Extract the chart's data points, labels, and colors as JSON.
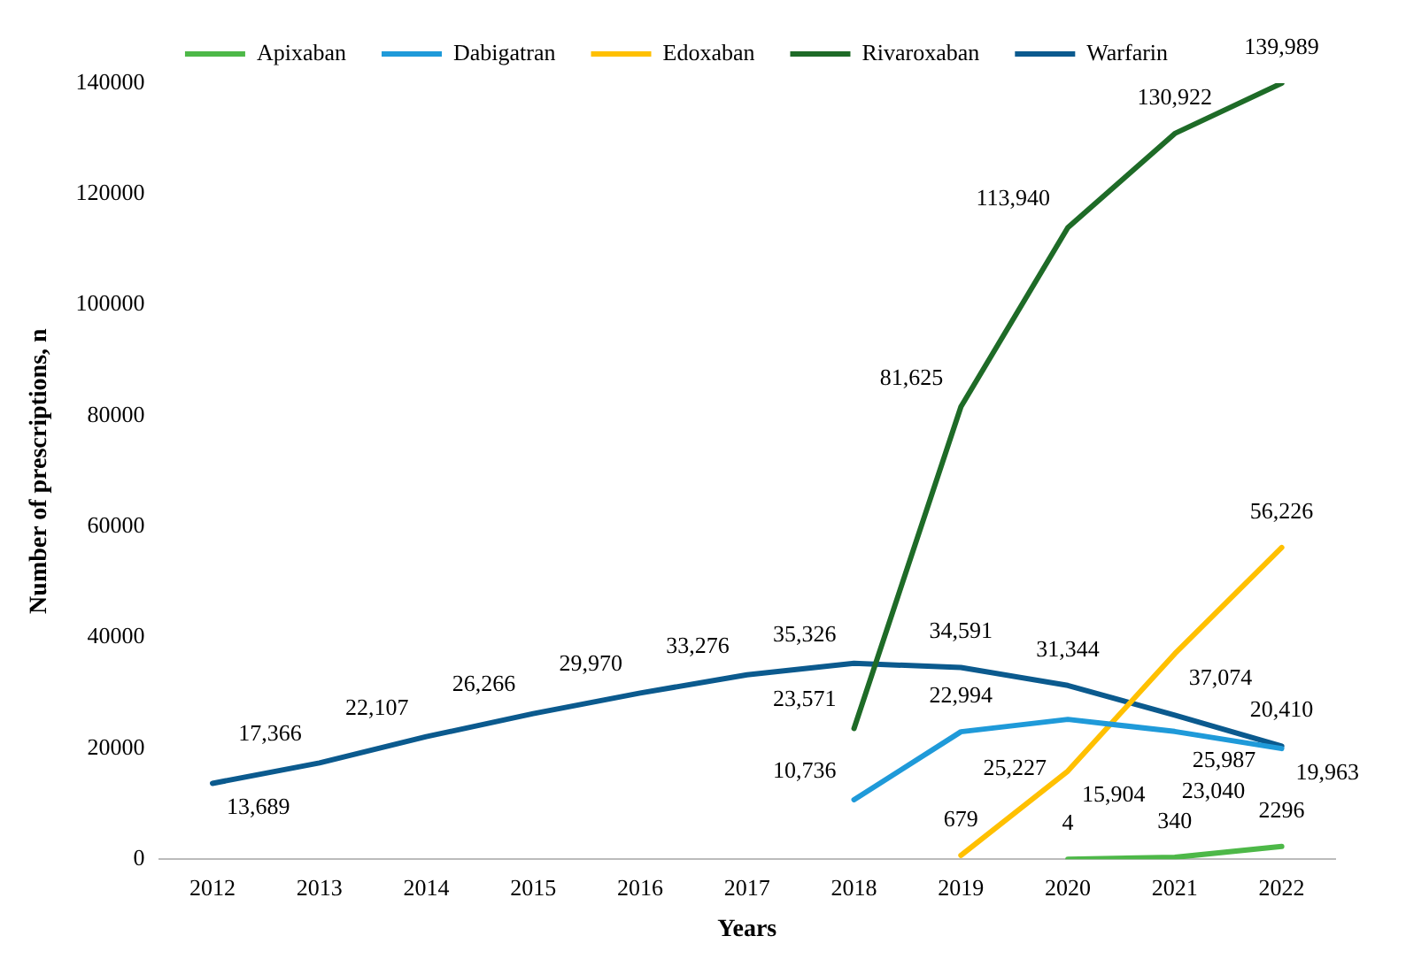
{
  "chart_data": {
    "type": "line",
    "xlabel": "Years",
    "ylabel": "Number of prescriptions, n",
    "categories": [
      "2012",
      "2013",
      "2014",
      "2015",
      "2016",
      "2017",
      "2018",
      "2019",
      "2020",
      "2021",
      "2022"
    ],
    "ylim": [
      0,
      140000
    ],
    "yticks": [
      0,
      20000,
      40000,
      60000,
      80000,
      100000,
      120000,
      140000
    ],
    "grid": false,
    "legend": "top",
    "marker": "none",
    "line_style": "solid",
    "series": [
      {
        "name": "Apixaban",
        "color": "#4db848",
        "values": [
          null,
          null,
          null,
          null,
          null,
          null,
          null,
          null,
          4,
          340,
          2296
        ],
        "value_labels": [
          null,
          null,
          null,
          null,
          null,
          null,
          null,
          null,
          "4",
          "340",
          "2296"
        ]
      },
      {
        "name": "Dabigatran",
        "color": "#1f9ad9",
        "values": [
          null,
          null,
          null,
          null,
          null,
          null,
          10736,
          22994,
          25227,
          23040,
          19963
        ],
        "value_labels": [
          null,
          null,
          null,
          null,
          null,
          null,
          "10,736",
          "22,994",
          "25,227",
          "23,040",
          "19,963"
        ]
      },
      {
        "name": "Edoxaban",
        "color": "#ffc000",
        "values": [
          null,
          null,
          null,
          null,
          null,
          null,
          null,
          679,
          15904,
          37074,
          56226
        ],
        "value_labels": [
          null,
          null,
          null,
          null,
          null,
          null,
          null,
          "679",
          "15,904",
          "37,074",
          "56,226"
        ]
      },
      {
        "name": "Rivaroxaban",
        "color": "#1e6b27",
        "values": [
          null,
          null,
          null,
          null,
          null,
          null,
          23571,
          81625,
          113940,
          130922,
          139989
        ],
        "value_labels": [
          null,
          null,
          null,
          null,
          null,
          null,
          "23,571",
          "81,625",
          "113,940",
          "130,922",
          "139,989"
        ]
      },
      {
        "name": "Warfarin",
        "color": "#0b5a8e",
        "values": [
          13689,
          17366,
          22107,
          26266,
          29970,
          33276,
          35326,
          34591,
          31344,
          25987,
          20410
        ],
        "value_labels": [
          "13,689",
          "17,366",
          "22,107",
          "26,266",
          "29,970",
          "33,276",
          "35,326",
          "34,591",
          "31,344",
          "25,987",
          "20,410"
        ]
      }
    ]
  }
}
